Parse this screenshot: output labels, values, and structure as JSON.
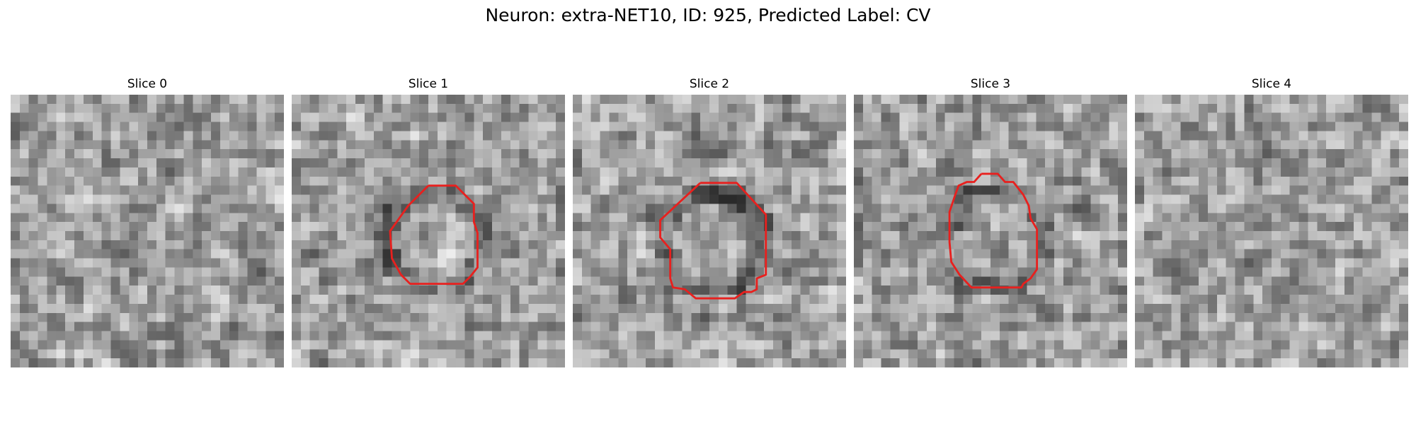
{
  "figure": {
    "title": "Neuron: extra-NET10, ID: 925, Predicted Label: CV",
    "grid_size": 30,
    "colormap": "gray",
    "contour_color": "#e8201e"
  },
  "panels": [
    {
      "title": "Slice 0",
      "has_contour": false,
      "seed": 11
    },
    {
      "title": "Slice 1",
      "has_contour": true,
      "seed": 23
    },
    {
      "title": "Slice 2",
      "has_contour": true,
      "seed": 37
    },
    {
      "title": "Slice 3",
      "has_contour": true,
      "seed": 49
    },
    {
      "title": "Slice 4",
      "has_contour": false,
      "seed": 61
    }
  ]
}
